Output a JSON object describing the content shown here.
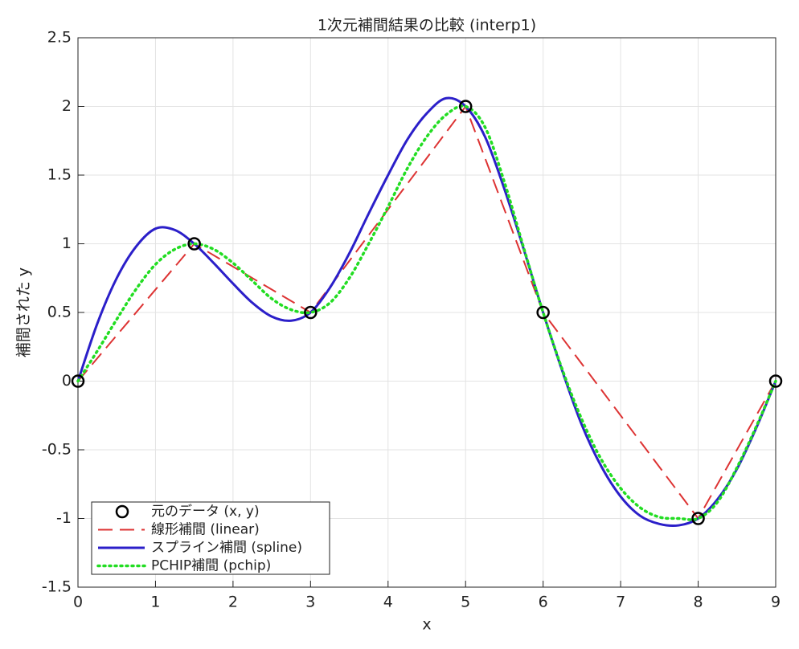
{
  "chart_data": {
    "type": "line",
    "title": "1次元補間結果の比較 (interp1)",
    "x_label": "x",
    "y_label": "補間された y",
    "xlim": [
      0,
      9
    ],
    "xticks": [
      0,
      1,
      2,
      3,
      4,
      5,
      6,
      7,
      8,
      9
    ],
    "ylim": [
      -1.5,
      2.5
    ],
    "yticks": [
      -1.5,
      -1,
      -0.5,
      0,
      0.5,
      1,
      1.5,
      2,
      2.5
    ],
    "grid": true,
    "legend_position": "lower-left",
    "series": [
      {
        "name": "元のデータ (x, y)",
        "style": "marker",
        "color": "#000000",
        "x": [
          0,
          1.5,
          3,
          5,
          6,
          8,
          9
        ],
        "values": [
          0,
          1,
          0.5,
          2,
          0.5,
          -1,
          0
        ]
      },
      {
        "name": "線形補間 (linear)",
        "style": "dashed",
        "color": "#dd3333",
        "x": [
          0,
          1.5,
          3,
          5,
          6,
          8,
          9
        ],
        "values": [
          0,
          1,
          0.5,
          2,
          0.5,
          -1,
          0
        ]
      },
      {
        "name": "スプライン補間 (spline)",
        "style": "solid",
        "color": "#2b1fc9",
        "x": [
          0,
          0.25,
          0.5,
          0.75,
          1,
          1.25,
          1.5,
          1.75,
          2,
          2.25,
          2.5,
          2.75,
          3,
          3.25,
          3.5,
          3.75,
          4,
          4.25,
          4.5,
          4.75,
          5,
          5.25,
          5.5,
          5.75,
          6,
          6.25,
          6.5,
          6.75,
          7,
          7.25,
          7.5,
          7.75,
          8,
          8.25,
          8.5,
          8.75,
          9
        ],
        "values": [
          0,
          0.42,
          0.75,
          0.98,
          1.11,
          1.1,
          1.0,
          0.86,
          0.71,
          0.57,
          0.47,
          0.44,
          0.5,
          0.68,
          0.93,
          1.22,
          1.5,
          1.76,
          1.95,
          2.06,
          2.0,
          1.78,
          1.4,
          0.96,
          0.5,
          0.07,
          -0.32,
          -0.62,
          -0.84,
          -0.98,
          -1.04,
          -1.05,
          -1.0,
          -0.86,
          -0.64,
          -0.34,
          0
        ]
      },
      {
        "name": "PCHIP補間 (pchip)",
        "style": "dotted",
        "color": "#22dd22",
        "x": [
          0,
          0.25,
          0.5,
          0.75,
          1,
          1.25,
          1.5,
          1.75,
          2,
          2.25,
          2.5,
          2.75,
          3,
          3.25,
          3.5,
          3.75,
          4,
          4.25,
          4.5,
          4.75,
          5,
          5.25,
          5.5,
          5.75,
          6,
          6.25,
          6.5,
          6.75,
          7,
          7.25,
          7.5,
          7.75,
          8,
          8.25,
          8.5,
          8.75,
          9
        ],
        "values": [
          0,
          0.22,
          0.45,
          0.67,
          0.85,
          0.96,
          1.0,
          0.96,
          0.86,
          0.73,
          0.6,
          0.52,
          0.5,
          0.57,
          0.75,
          1.0,
          1.27,
          1.55,
          1.78,
          1.94,
          2.0,
          1.85,
          1.45,
          0.97,
          0.5,
          0.08,
          -0.28,
          -0.57,
          -0.78,
          -0.92,
          -0.99,
          -1.0,
          -1.0,
          -0.88,
          -0.63,
          -0.33,
          0
        ]
      }
    ]
  }
}
